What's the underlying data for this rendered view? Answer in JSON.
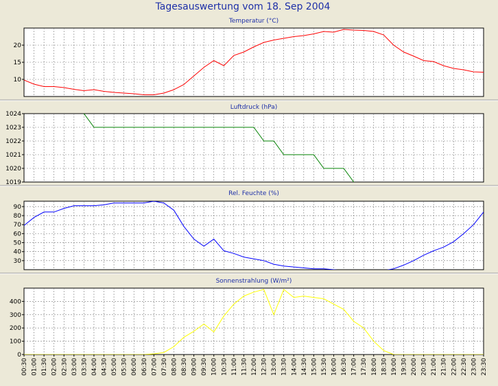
{
  "title": "Tagesauswertung vom 18. Sep 2004",
  "x_labels": [
    "00:30",
    "01:00",
    "01:30",
    "02:00",
    "02:30",
    "03:00",
    "03:30",
    "04:00",
    "04:30",
    "05:00",
    "05:30",
    "06:00",
    "06:30",
    "07:00",
    "07:30",
    "08:00",
    "08:30",
    "09:00",
    "09:30",
    "10:00",
    "10:30",
    "11:00",
    "11:30",
    "12:00",
    "12:30",
    "13:00",
    "13:30",
    "14:00",
    "14:30",
    "15:00",
    "15:30",
    "16:00",
    "16:30",
    "17:00",
    "17:30",
    "18:00",
    "18:30",
    "19:00",
    "19:30",
    "20:00",
    "20:30",
    "21:00",
    "21:30",
    "22:00",
    "22:30",
    "23:00",
    "23:30"
  ],
  "chart_data": [
    {
      "type": "line",
      "title": "Temperatur (°C)",
      "color": "#ff0000",
      "ylim": [
        5,
        25
      ],
      "yticks": [
        10,
        15,
        20
      ],
      "series": [
        {
          "values": [
            9.8,
            8.6,
            7.9,
            7.9,
            7.6,
            7.1,
            6.7,
            7.0,
            6.5,
            6.2,
            6.0,
            5.8,
            5.5,
            5.5,
            6.0,
            7.0,
            8.5,
            11.0,
            13.5,
            15.5,
            14.0,
            17.0,
            18.0,
            19.5,
            20.8,
            21.5,
            22.0,
            22.5,
            22.8,
            23.3,
            24.0,
            23.8,
            24.6,
            24.4,
            24.3,
            24.0,
            23.0,
            20.0,
            18.0,
            16.8,
            15.5,
            15.2,
            14.0,
            13.2,
            12.8,
            12.2,
            12.1
          ]
        }
      ]
    },
    {
      "type": "line",
      "title": "Luftdruck (hPa)",
      "color": "#008000",
      "ylim": [
        1019,
        1024
      ],
      "yticks": [
        1019,
        1020,
        1021,
        1022,
        1023,
        1024
      ],
      "series": [
        {
          "values": [
            1024.5,
            1024.5,
            1024.5,
            1024.5,
            1024.5,
            1024.5,
            1024,
            1023,
            1023,
            1023,
            1023,
            1023,
            1023,
            1023,
            1023,
            1023,
            1023,
            1023,
            1023,
            1023,
            1023,
            1023,
            1023,
            1023,
            1022,
            1022,
            1021,
            1021,
            1021,
            1021,
            1020,
            1020,
            1020,
            1019,
            1018.5,
            1018.5,
            1018.5,
            1018.5,
            1018.5,
            1018.5,
            1018.5,
            1018.5,
            1018.5,
            1018.5,
            1018.5,
            1018.5,
            1018.5
          ]
        }
      ]
    },
    {
      "type": "line",
      "title": "Rel. Feuchte (%)",
      "color": "#0000ff",
      "ylim": [
        20,
        96
      ],
      "yticks": [
        30,
        40,
        50,
        60,
        70,
        80,
        90
      ],
      "series": [
        {
          "values": [
            69,
            78,
            84,
            84,
            88,
            91,
            91,
            91,
            92,
            94,
            94,
            94,
            94,
            96,
            94,
            86,
            68,
            54,
            46,
            54,
            41,
            38,
            34,
            32,
            30,
            26,
            24,
            23,
            22,
            21,
            21,
            20,
            19,
            18,
            18,
            18,
            19,
            21,
            25,
            30,
            36,
            41,
            45,
            51,
            60,
            70,
            84
          ]
        }
      ]
    },
    {
      "type": "line",
      "title": "Sonnenstrahlung (W/m²)",
      "color": "#ffff00",
      "ylim": [
        0,
        500
      ],
      "yticks": [
        0,
        100,
        200,
        300,
        400
      ],
      "series": [
        {
          "values": [
            0,
            0,
            0,
            0,
            0,
            0,
            0,
            0,
            0,
            0,
            0,
            0,
            0,
            5,
            15,
            60,
            130,
            175,
            230,
            170,
            290,
            380,
            440,
            470,
            490,
            300,
            490,
            430,
            440,
            430,
            420,
            380,
            340,
            250,
            200,
            100,
            30,
            0,
            0,
            0,
            0,
            0,
            0,
            0,
            0,
            0,
            0
          ]
        }
      ]
    }
  ]
}
